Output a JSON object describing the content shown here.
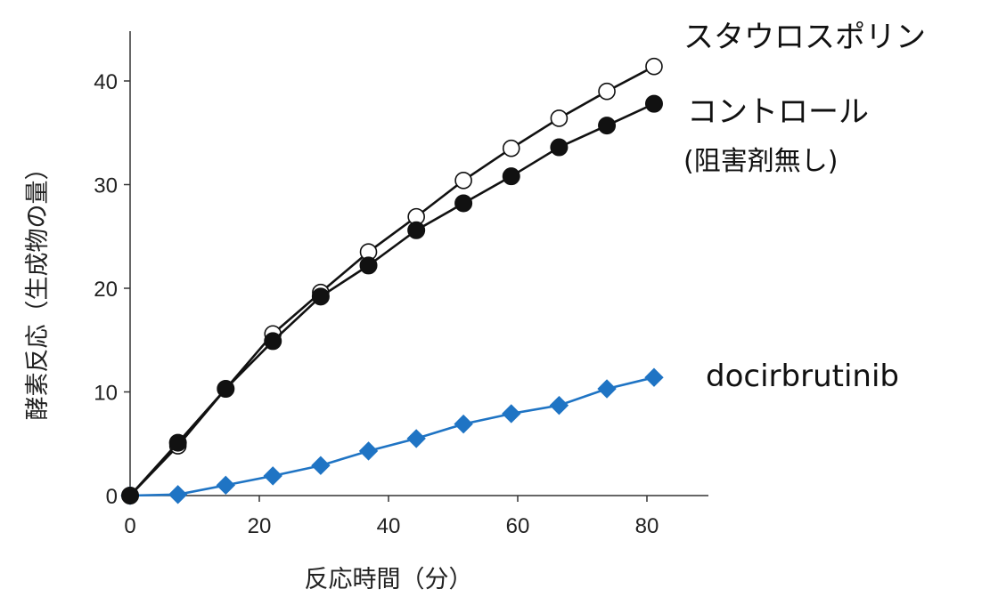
{
  "chart_data": {
    "type": "line",
    "xlabel": "反応時間（分）",
    "ylabel": "酵素反応（生成物の量）",
    "xlim": [
      0,
      90
    ],
    "ylim": [
      0,
      45
    ],
    "xticks": [
      0,
      20,
      40,
      60,
      80
    ],
    "yticks": [
      0,
      10,
      20,
      30,
      40
    ],
    "grid": false,
    "x": [
      0,
      7.4,
      14.8,
      22.1,
      29.5,
      36.9,
      44.3,
      51.6,
      59,
      66.4,
      73.8,
      81.1
    ],
    "series": [
      {
        "name": "スタウロスポリン",
        "values": [
          0,
          4.8,
          10.3,
          15.6,
          19.6,
          23.5,
          26.9,
          30.4,
          33.5,
          36.4,
          39,
          41.4
        ],
        "color": "#ffffff",
        "stroke": "#111111",
        "marker": "open-circle"
      },
      {
        "name": "コントロール",
        "name_line2": "(阻害剤無し)",
        "values": [
          0,
          5.1,
          10.3,
          14.9,
          19.2,
          22.2,
          25.6,
          28.2,
          30.8,
          33.6,
          35.7,
          37.8
        ],
        "color": "#111111",
        "stroke": "#111111",
        "marker": "filled-circle"
      },
      {
        "name": "docirbrutinib",
        "values": [
          0,
          0.1,
          1,
          1.9,
          2.9,
          4.3,
          5.5,
          6.9,
          7.9,
          8.7,
          10.3,
          11.4
        ],
        "color": "#1f74c4",
        "stroke": "#1f74c4",
        "marker": "diamond"
      }
    ]
  }
}
